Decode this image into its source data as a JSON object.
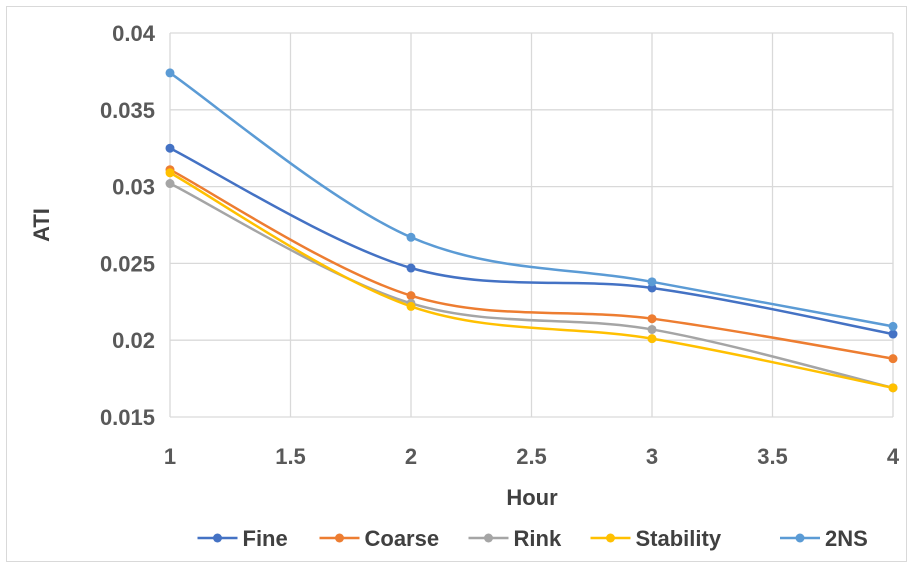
{
  "chart_data": {
    "type": "line",
    "title": "",
    "xlabel": "Hour",
    "ylabel": "ATI",
    "xlim": [
      1,
      4
    ],
    "ylim": [
      0.015,
      0.04
    ],
    "x_ticks": [
      1,
      1.5,
      2,
      2.5,
      3,
      3.5,
      4
    ],
    "x_tick_labels": [
      "1",
      "1.5",
      "2",
      "2.5",
      "3",
      "3.5",
      "4"
    ],
    "y_ticks": [
      0.015,
      0.02,
      0.025,
      0.03,
      0.035,
      0.04
    ],
    "y_tick_labels": [
      "0.015",
      "0.02",
      "0.025",
      "0.03",
      "0.035",
      "0.04"
    ],
    "grid": true,
    "smooth": true,
    "legend_position": "bottom",
    "x": [
      1,
      2,
      3,
      4
    ],
    "series": [
      {
        "name": "Fine",
        "color": "#4472c4",
        "values": [
          0.0325,
          0.0247,
          0.0234,
          0.0204
        ]
      },
      {
        "name": "Coarse",
        "color": "#ed7d31",
        "values": [
          0.0311,
          0.0229,
          0.0214,
          0.0188
        ]
      },
      {
        "name": "Rink",
        "color": "#a5a5a5",
        "values": [
          0.0302,
          0.0224,
          0.0207,
          0.0169
        ]
      },
      {
        "name": "Stability",
        "color": "#ffc000",
        "values": [
          0.0309,
          0.0222,
          0.0201,
          0.0169
        ]
      },
      {
        "name": "2NS",
        "color": "#5b9bd5",
        "values": [
          0.0374,
          0.0267,
          0.0238,
          0.0209
        ]
      }
    ]
  }
}
